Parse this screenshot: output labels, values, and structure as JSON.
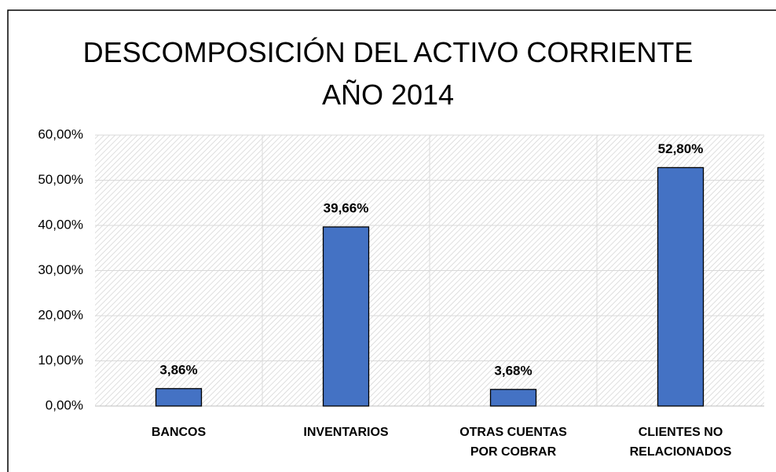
{
  "chart_data": {
    "type": "bar",
    "title": "DESCOMPOSICIÓN DEL ACTIVO CORRIENTE\nAÑO 2014",
    "categories": [
      "BANCOS",
      "INVENTARIOS",
      "OTRAS CUENTAS\nPOR COBRAR",
      "CLIENTES NO\nRELACIONADOS"
    ],
    "values": [
      3.86,
      39.66,
      3.68,
      52.8
    ],
    "value_labels": [
      "3,86%",
      "39,66%",
      "3,68%",
      "52,80%"
    ],
    "color": "#4472c4",
    "ylim": [
      0,
      60
    ],
    "yticks": [
      {
        "value": 0,
        "label": "0,00%"
      },
      {
        "value": 10,
        "label": "10,00%"
      },
      {
        "value": 20,
        "label": "20,00%"
      },
      {
        "value": 30,
        "label": "30,00%"
      },
      {
        "value": 40,
        "label": "40,00%"
      },
      {
        "value": 50,
        "label": "50,00%"
      },
      {
        "value": 60,
        "label": "60,00%"
      }
    ],
    "grid": true
  }
}
